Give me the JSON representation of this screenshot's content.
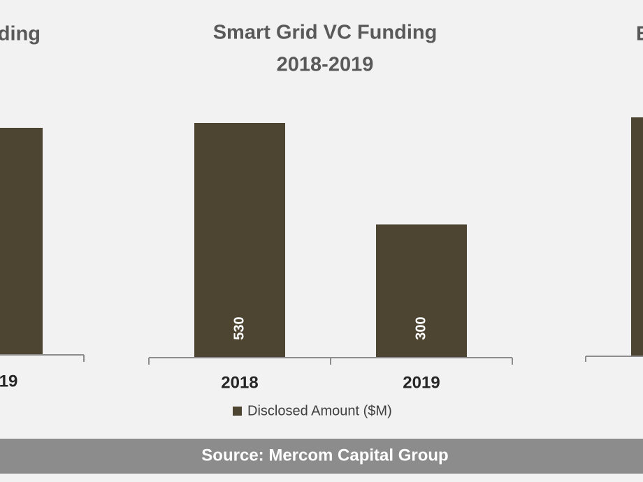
{
  "chart_data": {
    "type": "bar",
    "title": [
      "Smart Grid VC Funding",
      "2018-2019"
    ],
    "categories": [
      "2018",
      "2019"
    ],
    "values": [
      530,
      300
    ],
    "color": "#4d4431",
    "series_name": "Disclosed Amount ($M)"
  },
  "partial_charts": {
    "left_title": "ding",
    "left_category": "19",
    "right_title": "E"
  },
  "footer": "Source: Mercom Capital Group"
}
